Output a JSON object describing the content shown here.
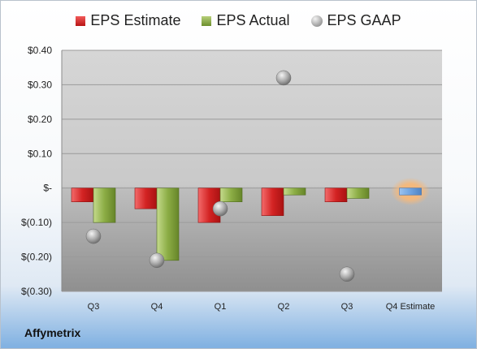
{
  "chart_data": {
    "type": "bar",
    "categories": [
      "Q3",
      "Q4",
      "Q1",
      "Q2",
      "Q3",
      "Q4 Estimate"
    ],
    "series": [
      {
        "name": "EPS Estimate",
        "values": [
          -0.04,
          -0.06,
          -0.1,
          -0.08,
          -0.04,
          -0.02
        ],
        "color": "#d42020"
      },
      {
        "name": "EPS Actual",
        "values": [
          -0.1,
          -0.21,
          -0.04,
          -0.02,
          -0.03,
          null
        ],
        "color": "#8cad45"
      },
      {
        "name": "EPS GAAP",
        "values": [
          -0.14,
          -0.21,
          -0.06,
          0.32,
          -0.25,
          null
        ],
        "color": "#a0a0a0"
      }
    ],
    "highlight_estimate_color": "#6fa3e0",
    "y_ticks": [
      "$0.40",
      "$0.30",
      "$0.20",
      "$0.10",
      "$-",
      "$(0.10)",
      "$(0.20)",
      "$(0.30)"
    ],
    "ylim": [
      -0.3,
      0.4
    ],
    "grid": true,
    "legend_position": "top"
  },
  "company": "Affymetrix"
}
